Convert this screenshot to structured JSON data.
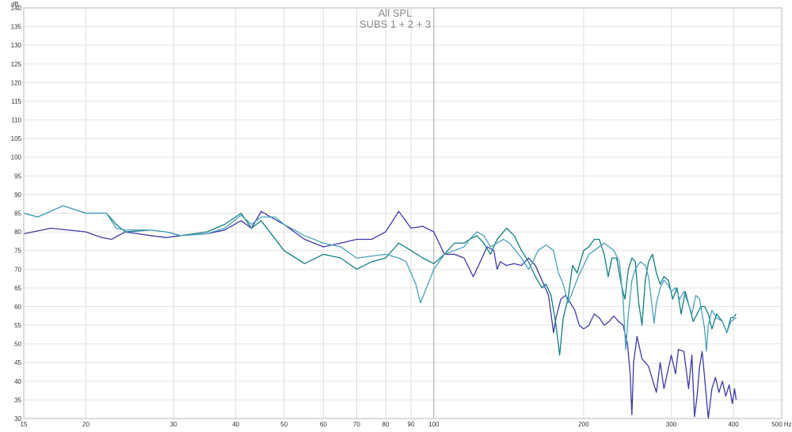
{
  "chart_data": {
    "type": "line",
    "title": "All SPL",
    "subtitle": "SUBS 1 + 2 + 3",
    "ylabel": "dB",
    "xunit": "Hz",
    "x_scale": "log",
    "xlim": [
      15,
      500
    ],
    "ylim": [
      30,
      140
    ],
    "grid": true,
    "x_ticks": [
      {
        "value": 15,
        "label": "15"
      },
      {
        "value": 20,
        "label": "20"
      },
      {
        "value": 30,
        "label": "30"
      },
      {
        "value": 40,
        "label": "40"
      },
      {
        "value": 50,
        "label": "50"
      },
      {
        "value": 60,
        "label": "60"
      },
      {
        "value": 70,
        "label": "70"
      },
      {
        "value": 80,
        "label": "80"
      },
      {
        "value": 90,
        "label": "90"
      },
      {
        "value": 100,
        "label": "100"
      },
      {
        "value": 200,
        "label": "200"
      },
      {
        "value": 300,
        "label": "300"
      },
      {
        "value": 400,
        "label": "400"
      },
      {
        "value": 500,
        "label": "500 Hz"
      }
    ],
    "y_ticks": [
      30,
      35,
      40,
      45,
      50,
      55,
      60,
      65,
      70,
      75,
      80,
      85,
      90,
      95,
      100,
      105,
      110,
      115,
      120,
      125,
      130,
      135,
      140
    ],
    "series": [
      {
        "color": "#3d3aa8",
        "points": [
          [
            15,
            79.5
          ],
          [
            17,
            81.0
          ],
          [
            20,
            80.0
          ],
          [
            21.5,
            78.5
          ],
          [
            22.5,
            78.0
          ],
          [
            24,
            80.0
          ],
          [
            27,
            79.0
          ],
          [
            29,
            78.5
          ],
          [
            31,
            79.0
          ],
          [
            35,
            79.5
          ],
          [
            38,
            80.5
          ],
          [
            41,
            83.0
          ],
          [
            43,
            81.0
          ],
          [
            45,
            85.5
          ],
          [
            47,
            84.0
          ],
          [
            50,
            82.0
          ],
          [
            55,
            78.0
          ],
          [
            60,
            76.0
          ],
          [
            65,
            77.0
          ],
          [
            70,
            78.0
          ],
          [
            75,
            78.0
          ],
          [
            80,
            80.0
          ],
          [
            85,
            85.5
          ],
          [
            90,
            81.0
          ],
          [
            95,
            81.5
          ],
          [
            100,
            80.0
          ],
          [
            105,
            74.0
          ],
          [
            110,
            74.0
          ],
          [
            115,
            73.0
          ],
          [
            118,
            70.0
          ],
          [
            120,
            68.0
          ],
          [
            122,
            70.0
          ],
          [
            128,
            76.0
          ],
          [
            132,
            75.0
          ],
          [
            134,
            70.0
          ],
          [
            136,
            72.0
          ],
          [
            140,
            71.0
          ],
          [
            145,
            71.5
          ],
          [
            150,
            71.0
          ],
          [
            155,
            73.0
          ],
          [
            160,
            71.0
          ],
          [
            165,
            67.0
          ],
          [
            170,
            63.0
          ],
          [
            172,
            58.0
          ],
          [
            174,
            53.0
          ],
          [
            176,
            57.0
          ],
          [
            180,
            62.0
          ],
          [
            184,
            63.0
          ],
          [
            188,
            61.0
          ],
          [
            192,
            59.0
          ],
          [
            196,
            55.0
          ],
          [
            200,
            54.0
          ],
          [
            205,
            55.0
          ],
          [
            210,
            58.0
          ],
          [
            215,
            57.0
          ],
          [
            220,
            55.0
          ],
          [
            225,
            56.0
          ],
          [
            230,
            57.5
          ],
          [
            235,
            56.0
          ],
          [
            240,
            55.0
          ],
          [
            245,
            50.0
          ],
          [
            248,
            42.0
          ],
          [
            250,
            31.0
          ],
          [
            252,
            45.0
          ],
          [
            256,
            52.0
          ],
          [
            262,
            46.0
          ],
          [
            270,
            44.0
          ],
          [
            280,
            37.0
          ],
          [
            285,
            45.0
          ],
          [
            290,
            38.0
          ],
          [
            300,
            47.0
          ],
          [
            306,
            42.0
          ],
          [
            310,
            48.5
          ],
          [
            318,
            48.0
          ],
          [
            325,
            38.0
          ],
          [
            330,
            47.0
          ],
          [
            334,
            30.5
          ],
          [
            338,
            36.0
          ],
          [
            342,
            44.0
          ],
          [
            346,
            48.0
          ],
          [
            350,
            41.0
          ],
          [
            356,
            30.0
          ],
          [
            362,
            38.0
          ],
          [
            368,
            41.0
          ],
          [
            374,
            37.0
          ],
          [
            380,
            40.0
          ],
          [
            386,
            36.0
          ],
          [
            392,
            39.0
          ],
          [
            398,
            34.0
          ],
          [
            402,
            38.0
          ],
          [
            405,
            35.0
          ]
        ]
      },
      {
        "color": "#117d7d",
        "points": [
          [
            15,
            85.0
          ],
          [
            16,
            84.0
          ],
          [
            18,
            87.0
          ],
          [
            20,
            85.0
          ],
          [
            22,
            85.0
          ],
          [
            23,
            82.0
          ],
          [
            24,
            80.0
          ],
          [
            27,
            80.5
          ],
          [
            29,
            80.0
          ],
          [
            31,
            79.0
          ],
          [
            35,
            80.0
          ],
          [
            38,
            82.0
          ],
          [
            41,
            85.0
          ],
          [
            43,
            81.0
          ],
          [
            45,
            83.0
          ],
          [
            50,
            75.0
          ],
          [
            55,
            71.5
          ],
          [
            60,
            74.0
          ],
          [
            65,
            73.0
          ],
          [
            70,
            70.0
          ],
          [
            75,
            72.0
          ],
          [
            80,
            73.0
          ],
          [
            85,
            77.0
          ],
          [
            90,
            75.0
          ],
          [
            95,
            73.0
          ],
          [
            100,
            71.5
          ],
          [
            105,
            74.0
          ],
          [
            110,
            77.0
          ],
          [
            115,
            77.0
          ],
          [
            118,
            78.0
          ],
          [
            122,
            79.0
          ],
          [
            126,
            77.0
          ],
          [
            130,
            74.0
          ],
          [
            134,
            78.0
          ],
          [
            138,
            80.0
          ],
          [
            140,
            81.0
          ],
          [
            145,
            79.0
          ],
          [
            150,
            75.0
          ],
          [
            155,
            72.0
          ],
          [
            160,
            68.0
          ],
          [
            165,
            65.0
          ],
          [
            168,
            66.0
          ],
          [
            172,
            63.0
          ],
          [
            176,
            55.0
          ],
          [
            179,
            47.0
          ],
          [
            182,
            57.0
          ],
          [
            186,
            62.0
          ],
          [
            190,
            71.0
          ],
          [
            194,
            69.0
          ],
          [
            197,
            72.0
          ],
          [
            200,
            75.0
          ],
          [
            205,
            76.0
          ],
          [
            210,
            78.0
          ],
          [
            215,
            78.0
          ],
          [
            220,
            74.0
          ],
          [
            224,
            68.0
          ],
          [
            228,
            73.0
          ],
          [
            233,
            73.0
          ],
          [
            238,
            66.0
          ],
          [
            242,
            62.0
          ],
          [
            246,
            70.0
          ],
          [
            250,
            73.0
          ],
          [
            254,
            72.0
          ],
          [
            258,
            61.0
          ],
          [
            262,
            55.0
          ],
          [
            266,
            67.0
          ],
          [
            270,
            72.0
          ],
          [
            275,
            74.0
          ],
          [
            280,
            69.0
          ],
          [
            285,
            66.0
          ],
          [
            290,
            68.0
          ],
          [
            296,
            67.0
          ],
          [
            302,
            62.0
          ],
          [
            308,
            65.0
          ],
          [
            314,
            58.0
          ],
          [
            320,
            64.0
          ],
          [
            326,
            60.0
          ],
          [
            332,
            56.0
          ],
          [
            338,
            58.0
          ],
          [
            344,
            60.0
          ],
          [
            350,
            60.0
          ],
          [
            356,
            58.0
          ],
          [
            362,
            54.0
          ],
          [
            370,
            58.0
          ],
          [
            380,
            56.0
          ],
          [
            388,
            53.0
          ],
          [
            395,
            57.0
          ],
          [
            400,
            57.0
          ],
          [
            405,
            58.0
          ]
        ]
      },
      {
        "color": "#4aa0bc",
        "points": [
          [
            15,
            85.0
          ],
          [
            16,
            84.0
          ],
          [
            18,
            87.0
          ],
          [
            20,
            85.0
          ],
          [
            22,
            85.0
          ],
          [
            23,
            81.0
          ],
          [
            24,
            80.5
          ],
          [
            27,
            80.5
          ],
          [
            29,
            80.0
          ],
          [
            31,
            79.0
          ],
          [
            35,
            79.5
          ],
          [
            38,
            81.0
          ],
          [
            41,
            84.5
          ],
          [
            43,
            82.0
          ],
          [
            45,
            84.0
          ],
          [
            48,
            84.0
          ],
          [
            50,
            82.0
          ],
          [
            55,
            79.0
          ],
          [
            60,
            77.0
          ],
          [
            65,
            76.0
          ],
          [
            70,
            73.0
          ],
          [
            75,
            73.5
          ],
          [
            80,
            74.0
          ],
          [
            85,
            73.0
          ],
          [
            88,
            72.0
          ],
          [
            90,
            69.0
          ],
          [
            92,
            66.0
          ],
          [
            94,
            61.0
          ],
          [
            96,
            64.0
          ],
          [
            100,
            70.0
          ],
          [
            105,
            74.0
          ],
          [
            110,
            75.0
          ],
          [
            115,
            76.0
          ],
          [
            118,
            78.0
          ],
          [
            122,
            80.0
          ],
          [
            126,
            79.0
          ],
          [
            130,
            76.0
          ],
          [
            134,
            77.0
          ],
          [
            138,
            78.0
          ],
          [
            142,
            77.0
          ],
          [
            146,
            75.0
          ],
          [
            150,
            73.0
          ],
          [
            155,
            70.0
          ],
          [
            158,
            72.0
          ],
          [
            162,
            75.0
          ],
          [
            168,
            76.5
          ],
          [
            174,
            75.0
          ],
          [
            178,
            69.0
          ],
          [
            182,
            66.0
          ],
          [
            186,
            61.0
          ],
          [
            190,
            64.0
          ],
          [
            195,
            68.0
          ],
          [
            200,
            71.0
          ],
          [
            205,
            74.0
          ],
          [
            210,
            75.0
          ],
          [
            215,
            76.0
          ],
          [
            220,
            77.0
          ],
          [
            225,
            76.0
          ],
          [
            230,
            75.0
          ],
          [
            236,
            72.0
          ],
          [
            240,
            62.0
          ],
          [
            243,
            48.5
          ],
          [
            246,
            58.0
          ],
          [
            250,
            67.0
          ],
          [
            254,
            70.0
          ],
          [
            260,
            72.0
          ],
          [
            266,
            71.0
          ],
          [
            270,
            68.0
          ],
          [
            274,
            61.0
          ],
          [
            277,
            55.5
          ],
          [
            280,
            61.0
          ],
          [
            285,
            65.0
          ],
          [
            290,
            67.0
          ],
          [
            295,
            66.0
          ],
          [
            300,
            64.0
          ],
          [
            306,
            65.0
          ],
          [
            312,
            62.0
          ],
          [
            318,
            64.0
          ],
          [
            324,
            61.0
          ],
          [
            330,
            58.0
          ],
          [
            336,
            63.0
          ],
          [
            342,
            62.0
          ],
          [
            346,
            58.0
          ],
          [
            350,
            54.0
          ],
          [
            353,
            48.0
          ],
          [
            356,
            55.0
          ],
          [
            362,
            59.0
          ],
          [
            370,
            57.0
          ],
          [
            380,
            56.0
          ],
          [
            388,
            53.0
          ],
          [
            395,
            56.0
          ],
          [
            405,
            57.0
          ]
        ]
      }
    ]
  }
}
